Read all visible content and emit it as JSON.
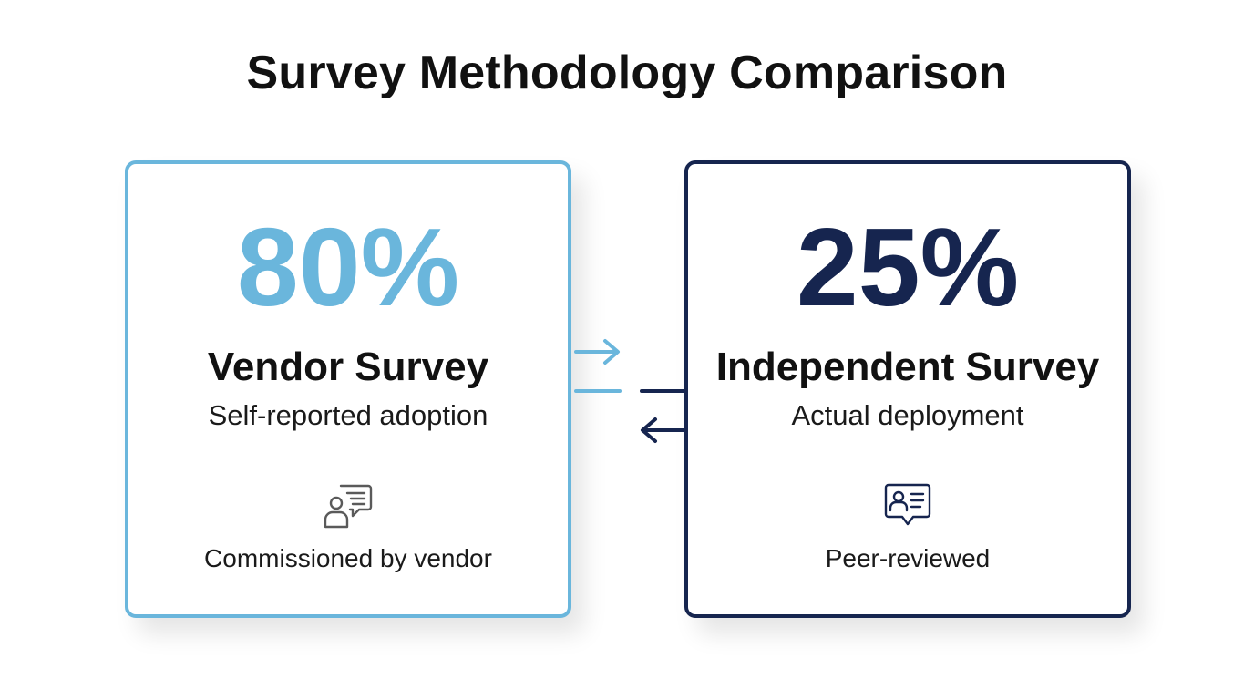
{
  "title": "Survey Methodology Comparison",
  "cards": [
    {
      "percent": "80%",
      "title": "Vendor Survey",
      "subtitle": "Self-reported adoption",
      "icon": "person-speech-icon",
      "footer": "Commissioned by vendor",
      "accent": "#6ab6dc"
    },
    {
      "percent": "25%",
      "title": "Independent Survey",
      "subtitle": "Actual deployment",
      "icon": "profile-card-icon",
      "footer": "Peer-reviewed",
      "accent": "#16254f"
    }
  ],
  "colors": {
    "light_blue": "#6ab6dc",
    "navy": "#16254f",
    "text": "#111111"
  }
}
